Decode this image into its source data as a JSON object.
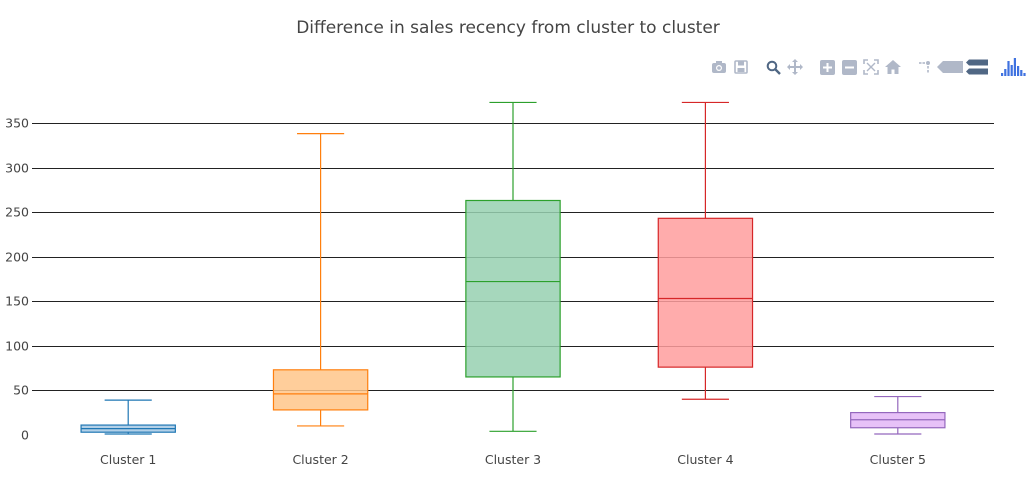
{
  "title": "Difference in sales recency from cluster to cluster",
  "modebar": {
    "buttons": [
      {
        "name": "camera-icon"
      },
      {
        "name": "save-icon"
      },
      {
        "name": "zoom-icon"
      },
      {
        "name": "pan-icon"
      },
      {
        "name": "zoom-in-icon"
      },
      {
        "name": "zoom-out-icon"
      },
      {
        "name": "autoscale-icon"
      },
      {
        "name": "reset-axes-icon"
      },
      {
        "name": "spike-lines-icon"
      },
      {
        "name": "hover-closest-icon"
      },
      {
        "name": "hover-compare-icon"
      },
      {
        "name": "plotly-logo-icon"
      }
    ]
  },
  "chart_data": {
    "type": "box",
    "title": "Difference in sales recency from cluster to cluster",
    "categories": [
      "Cluster 1",
      "Cluster 2",
      "Cluster 3",
      "Cluster 4",
      "Cluster 5"
    ],
    "y_ticks": [
      0,
      50,
      100,
      150,
      200,
      250,
      300,
      350
    ],
    "ylim": [
      -8,
      378
    ],
    "grid": true,
    "series": [
      {
        "category": "Cluster 1",
        "min": 1,
        "q1": 3,
        "median": 7,
        "q3": 11,
        "max": 39,
        "color": "#1f77b4",
        "fill": "#a5c8e4"
      },
      {
        "category": "Cluster 2",
        "min": 10,
        "q1": 28,
        "median": 46,
        "q3": 73,
        "max": 338,
        "color": "#ff7f0e",
        "fill": "#ffc689"
      },
      {
        "category": "Cluster 3",
        "min": 4,
        "q1": 65,
        "median": 172,
        "q3": 263,
        "max": 373,
        "color": "#2ca02c",
        "fill": "#96d0b0"
      },
      {
        "category": "Cluster 4",
        "min": 40,
        "q1": 76,
        "median": 153,
        "q3": 243,
        "max": 373,
        "color": "#d62728",
        "fill": "#ff9e9e"
      },
      {
        "category": "Cluster 5",
        "min": 1,
        "q1": 8,
        "median": 17,
        "q3": 25,
        "max": 43,
        "color": "#9467bd",
        "fill": "#e3b6f7"
      }
    ]
  }
}
